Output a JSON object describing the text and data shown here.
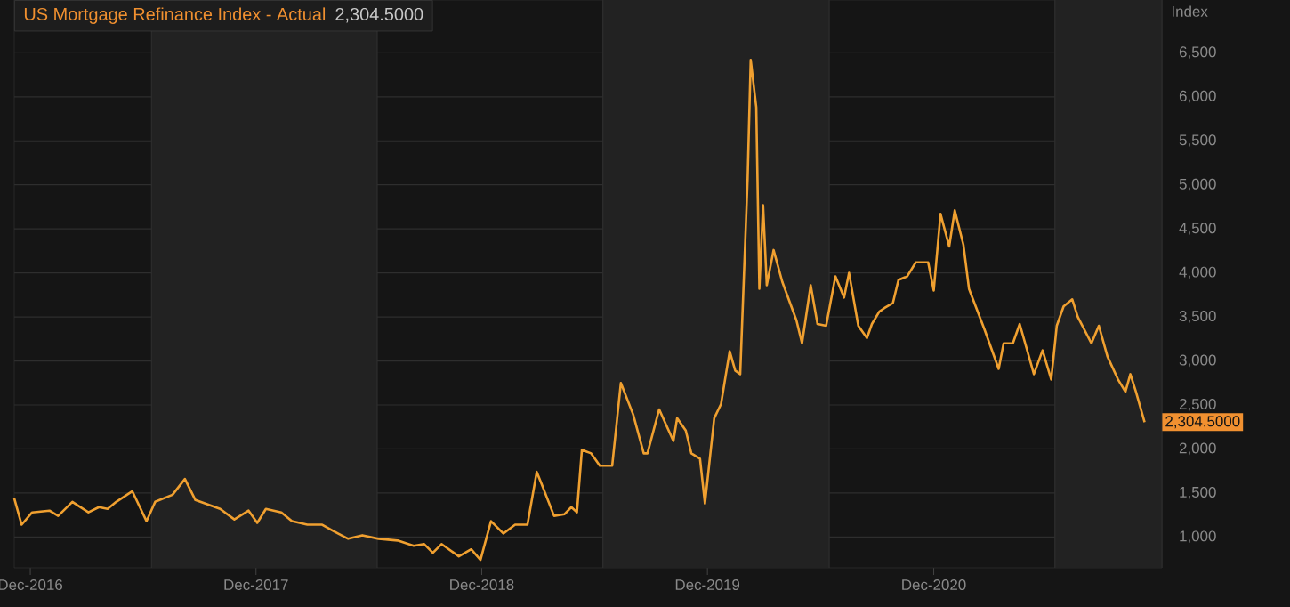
{
  "chart_data": {
    "type": "line",
    "title": "US Mortgage Refinance Index - Actual",
    "ylabel": "Index",
    "annotations": [
      "2,304.5000",
      "2,304.5000"
    ],
    "x": [
      "2016-11-05",
      "2016-11-17",
      "2016-12-04",
      "2017-01-01",
      "2017-01-15",
      "2017-02-07",
      "2017-03-05",
      "2017-03-22",
      "2017-04-05",
      "2017-04-19",
      "2017-05-15",
      "2017-06-07",
      "2017-06-21",
      "2017-07-19",
      "2017-08-08",
      "2017-08-25",
      "2017-10-04",
      "2017-10-27",
      "2017-11-19",
      "2017-12-03",
      "2017-12-17",
      "2018-01-11",
      "2018-01-28",
      "2018-02-22",
      "2018-03-18",
      "2018-04-07",
      "2018-04-29",
      "2018-05-22",
      "2018-06-17",
      "2018-07-18",
      "2018-08-13",
      "2018-08-30",
      "2018-09-13",
      "2018-09-27",
      "2018-10-25",
      "2018-11-14",
      "2018-11-29",
      "2018-12-16",
      "2019-01-05",
      "2019-01-24",
      "2019-02-13",
      "2019-02-28",
      "2019-03-08",
      "2019-03-28",
      "2019-04-14",
      "2019-04-25",
      "2019-05-04",
      "2019-05-12",
      "2019-05-27",
      "2019-06-10",
      "2019-06-30",
      "2019-07-14",
      "2019-08-03",
      "2019-08-20",
      "2019-08-26",
      "2019-09-14",
      "2019-10-07",
      "2019-10-13",
      "2019-10-27",
      "2019-11-05",
      "2019-11-19",
      "2019-11-27",
      "2019-12-12",
      "2019-12-23",
      "2020-01-06",
      "2020-01-15",
      "2020-01-23",
      "2020-02-04",
      "2020-02-09",
      "2020-02-18",
      "2020-02-23",
      "2020-02-29",
      "2020-03-06",
      "2020-03-17",
      "2020-03-31",
      "2020-04-23",
      "2020-05-02",
      "2020-05-16",
      "2020-05-27",
      "2020-06-10",
      "2020-06-25",
      "2020-07-09",
      "2020-07-17",
      "2020-08-01",
      "2020-08-15",
      "2020-08-23",
      "2020-09-04",
      "2020-09-12",
      "2020-09-26",
      "2020-10-05",
      "2020-10-19",
      "2020-11-02",
      "2020-11-22",
      "2020-12-01",
      "2020-12-12",
      "2020-12-26",
      "2021-01-04",
      "2021-01-18",
      "2021-01-27",
      "2021-02-21",
      "2021-03-16",
      "2021-03-24",
      "2021-04-08",
      "2021-04-19",
      "2021-05-12",
      "2021-05-26",
      "2021-06-09",
      "2021-06-18",
      "2021-06-29",
      "2021-07-13",
      "2021-07-22",
      "2021-08-13",
      "2021-08-25",
      "2021-09-08",
      "2021-09-25",
      "2021-10-07",
      "2021-10-15",
      "2021-10-24",
      "2021-11-07"
    ],
    "series": [
      {
        "color": "#f0a030",
        "values": [
          1440,
          1140,
          1280,
          1300,
          1240,
          1400,
          1280,
          1340,
          1320,
          1400,
          1520,
          1180,
          1400,
          1480,
          1660,
          1420,
          1320,
          1200,
          1300,
          1160,
          1320,
          1280,
          1180,
          1140,
          1140,
          1060,
          980,
          1020,
          980,
          960,
          900,
          920,
          820,
          920,
          780,
          860,
          740,
          1180,
          1040,
          1140,
          1140,
          1740,
          1600,
          1240,
          1260,
          1340,
          1280,
          1990,
          1950,
          1810,
          1810,
          2750,
          2390,
          1950,
          1950,
          2450,
          2090,
          2350,
          2210,
          1950,
          1890,
          1380,
          2350,
          2510,
          3110,
          2890,
          2850,
          5070,
          6420,
          5880,
          3820,
          4770,
          3860,
          4260,
          3900,
          3460,
          3200,
          3860,
          3420,
          3400,
          3960,
          3720,
          4000,
          3400,
          3260,
          3420,
          3560,
          3600,
          3660,
          3920,
          3960,
          4120,
          4120,
          3800,
          4670,
          4300,
          4710,
          4320,
          3820,
          3360,
          2910,
          3200,
          3200,
          3420,
          2850,
          3120,
          2790,
          3400,
          3620,
          3700,
          3500,
          3200,
          3400,
          3050,
          2790,
          2650,
          2850,
          2650,
          2304.5
        ]
      }
    ],
    "xlim": [
      "2016-11-05",
      "2021-12-05"
    ],
    "xticks": [
      {
        "value": "2016-12-01",
        "label": "Dec-2016"
      },
      {
        "value": "2017-12-01",
        "label": "Dec-2017"
      },
      {
        "value": "2018-12-01",
        "label": "Dec-2018"
      },
      {
        "value": "2019-12-01",
        "label": "Dec-2019"
      },
      {
        "value": "2020-12-01",
        "label": "Dec-2020"
      }
    ],
    "ylim": [
      650,
      7100
    ],
    "yticks": [
      {
        "value": 1000,
        "label": "1,000"
      },
      {
        "value": 1500,
        "label": "1,500"
      },
      {
        "value": 2000,
        "label": "2,000"
      },
      {
        "value": 2500,
        "label": "2,500"
      },
      {
        "value": 3000,
        "label": "3,000"
      },
      {
        "value": 3500,
        "label": "3,500"
      },
      {
        "value": 4000,
        "label": "4,000"
      },
      {
        "value": 4500,
        "label": "4,500"
      },
      {
        "value": 5000,
        "label": "5,000"
      },
      {
        "value": 5500,
        "label": "5,500"
      },
      {
        "value": 6000,
        "label": "6,000"
      },
      {
        "value": 6500,
        "label": "6,500"
      }
    ],
    "grid": "y",
    "bands": [
      {
        "axis": "x",
        "from": "2017-06-15",
        "to": "2018-06-15",
        "color": "#222222"
      },
      {
        "axis": "x",
        "from": "2019-06-15",
        "to": "2020-06-15",
        "color": "#222222"
      },
      {
        "axis": "x",
        "from": "2021-06-15",
        "to": "2021-12-05",
        "color": "#222222"
      }
    ]
  }
}
